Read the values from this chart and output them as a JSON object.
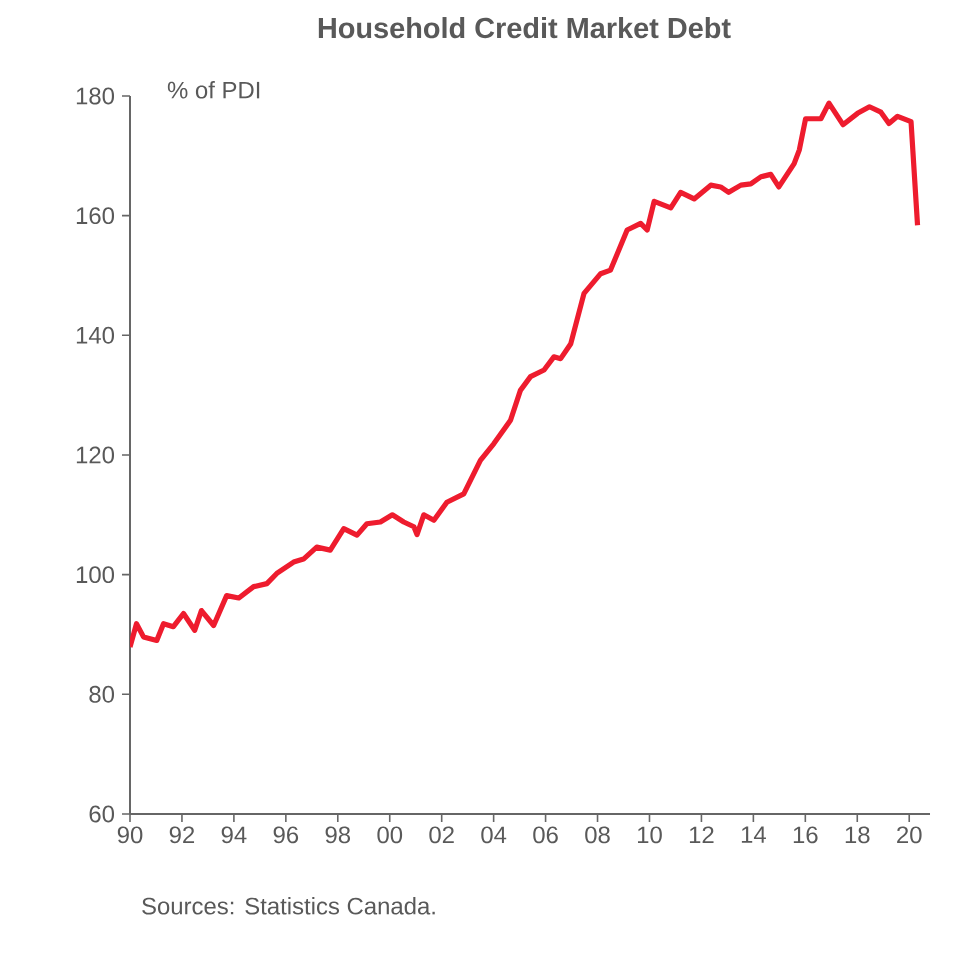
{
  "chart_data": {
    "type": "line",
    "title": "Household Credit Market Debt",
    "annotations": [
      "% of PDI",
      "Sources: Statistics Canada."
    ],
    "x": [
      1990.0,
      1990.25,
      1990.52,
      1991.03,
      1991.29,
      1991.67,
      1992.06,
      1992.49,
      1992.75,
      1993.22,
      1993.72,
      1994.19,
      1994.76,
      1995.27,
      1995.65,
      1996.3,
      1996.68,
      1997.19,
      1997.71,
      1998.23,
      1998.74,
      1999.12,
      1999.64,
      2000.1,
      2000.54,
      2000.93,
      2001.05,
      2001.31,
      2001.7,
      2002.2,
      2002.85,
      2003.49,
      2004.01,
      2004.65,
      2005.03,
      2005.42,
      2005.94,
      2006.32,
      2006.58,
      2006.97,
      2007.48,
      2008.12,
      2008.5,
      2009.14,
      2009.66,
      2009.91,
      2010.18,
      2010.82,
      2011.2,
      2011.72,
      2012.36,
      2012.74,
      2013.05,
      2013.52,
      2013.9,
      2014.29,
      2014.67,
      2014.98,
      2015.57,
      2015.77,
      2016.01,
      2016.6,
      2016.91,
      2017.45,
      2018.01,
      2018.47,
      2018.91,
      2019.22,
      2019.55,
      2020.07,
      2020.32
    ],
    "series": [
      {
        "color": "#ee1c2e",
        "values": [
          87.9,
          91.8,
          89.6,
          89.0,
          91.8,
          91.3,
          93.5,
          90.7,
          94.0,
          91.5,
          96.5,
          96.1,
          98.0,
          98.5,
          100.2,
          102.1,
          102.6,
          104.6,
          104.1,
          107.7,
          106.6,
          108.5,
          108.8,
          110.0,
          108.8,
          108.0,
          106.7,
          110.0,
          109.1,
          112.1,
          113.5,
          119.1,
          121.9,
          125.8,
          130.8,
          133.1,
          134.2,
          136.4,
          136.1,
          138.6,
          147.0,
          150.3,
          150.9,
          157.6,
          158.7,
          157.6,
          162.4,
          161.3,
          163.9,
          162.8,
          165.1,
          164.8,
          163.9,
          165.1,
          165.3,
          166.5,
          166.9,
          164.8,
          168.7,
          171.0,
          176.2,
          176.2,
          178.8,
          175.2,
          177.1,
          178.2,
          177.3,
          175.4,
          176.6,
          175.7,
          158.4
        ]
      }
    ],
    "xlim": [
      1990,
      2020.8
    ],
    "xticks": [
      {
        "value": 1990,
        "label": "90"
      },
      {
        "value": 1992,
        "label": "92"
      },
      {
        "value": 1994,
        "label": "94"
      },
      {
        "value": 1996,
        "label": "96"
      },
      {
        "value": 1998,
        "label": "98"
      },
      {
        "value": 2000,
        "label": "00"
      },
      {
        "value": 2002,
        "label": "02"
      },
      {
        "value": 2004,
        "label": "04"
      },
      {
        "value": 2006,
        "label": "06"
      },
      {
        "value": 2008,
        "label": "08"
      },
      {
        "value": 2010,
        "label": "10"
      },
      {
        "value": 2012,
        "label": "12"
      },
      {
        "value": 2014,
        "label": "14"
      },
      {
        "value": 2016,
        "label": "16"
      },
      {
        "value": 2018,
        "label": "18"
      },
      {
        "value": 2020,
        "label": "20"
      }
    ],
    "ylim": [
      60,
      180
    ],
    "yticks": [
      60,
      80,
      100,
      120,
      140,
      160,
      180
    ],
    "grid": false,
    "marker": "none",
    "line_style": "solid"
  }
}
